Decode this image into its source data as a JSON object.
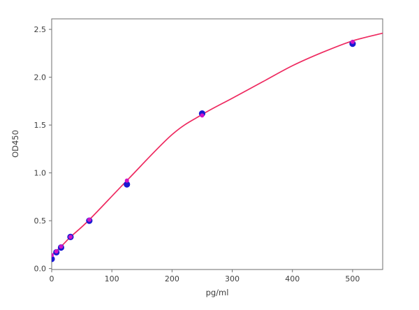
{
  "chart": {
    "kind": "elisa-standard-curve",
    "background_color": "#ffffff",
    "spine_color": "#6e6e6e",
    "tick_label_color": "#3d3d3d"
  },
  "chart_data": {
    "type": "scatter",
    "title": "",
    "xlabel": "pg/ml",
    "ylabel": "OD450",
    "xlim": [
      0,
      550
    ],
    "ylim": [
      -0.01,
      2.61
    ],
    "x_ticks": [
      0,
      100,
      200,
      300,
      400,
      500
    ],
    "x_tick_labels": [
      "0",
      "100",
      "200",
      "300",
      "400",
      "500"
    ],
    "y_ticks": [
      0.0,
      0.5,
      1.0,
      1.5,
      2.0,
      2.5
    ],
    "y_tick_labels": [
      "0.0",
      "0.5",
      "1.0",
      "1.5",
      "2.0",
      "2.5"
    ],
    "grid": false,
    "legend": "none",
    "series": [
      {
        "name": "fit-curve",
        "type": "line",
        "color": "#ee2a60",
        "line_width": 1.7,
        "x": [
          0,
          15.6,
          31.25,
          62.5,
          125,
          200,
          250,
          300,
          350,
          400,
          450,
          500,
          550
        ],
        "y": [
          0.14,
          0.23,
          0.33,
          0.51,
          0.92,
          1.4,
          1.61,
          1.78,
          1.95,
          2.12,
          2.26,
          2.38,
          2.46
        ]
      },
      {
        "name": "standard-points",
        "type": "scatter",
        "color": "#1a1ad2",
        "marker_radius": 4.6,
        "x": [
          0,
          7.8,
          15.6,
          31.25,
          62.5,
          125,
          250,
          500
        ],
        "y": [
          0.1,
          0.17,
          0.22,
          0.33,
          0.5,
          0.88,
          1.62,
          2.35
        ]
      },
      {
        "name": "fitted-points",
        "type": "scatter",
        "color": "#cf14c8",
        "marker_radius": 3.0,
        "x": [
          0,
          7.8,
          15.6,
          31.25,
          62.5,
          125,
          250,
          500
        ],
        "y": [
          0.14,
          0.18,
          0.23,
          0.33,
          0.51,
          0.92,
          1.6,
          2.37
        ]
      }
    ]
  }
}
